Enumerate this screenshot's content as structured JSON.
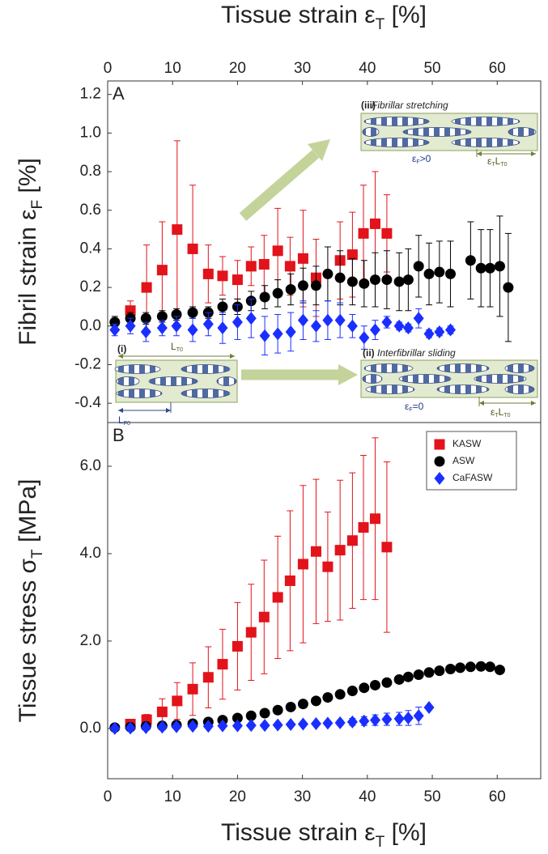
{
  "chart_data": [
    {
      "type": "scatter",
      "panel_label": "A",
      "xlabel": [
        {
          "t": "Tissue strain ε"
        },
        {
          "t": "T",
          "sub": true
        },
        {
          "t": " [%]"
        }
      ],
      "ylabel": [
        {
          "t": "Fibril strain ε"
        },
        {
          "t": "F",
          "sub": true
        },
        {
          "t": " [%]"
        }
      ],
      "xlim": [
        0,
        66.7
      ],
      "xticks": [
        0,
        10,
        20,
        30,
        40,
        50,
        60
      ],
      "ylim": [
        -0.5,
        1.27
      ],
      "yticks": [
        -0.4,
        -0.2,
        {
          "value": 0,
          "label": "0.0"
        },
        0.2,
        0.4,
        0.6,
        0.8,
        {
          "value": 1,
          "label": "1.0"
        },
        1.2
      ],
      "series": [
        {
          "name": "KASW",
          "color": "#e2131b",
          "marker": "square",
          "x": [
            3.5,
            6.0,
            8.4,
            10.7,
            13.1,
            15.5,
            17.7,
            20.0,
            22.1,
            24.1,
            26.2,
            28.1,
            30.1,
            32.1,
            35.8,
            37.7,
            39.4,
            41.2,
            43.0
          ],
          "values": [
            0.08,
            0.2,
            0.29,
            0.5,
            0.4,
            0.27,
            0.26,
            0.24,
            0.31,
            0.32,
            0.39,
            0.31,
            0.35,
            0.25,
            0.34,
            0.37,
            0.48,
            0.53,
            0.48
          ],
          "errors": [
            0.05,
            0.22,
            0.25,
            0.46,
            0.33,
            0.15,
            0.1,
            0.1,
            0.1,
            0.15,
            0.22,
            0.15,
            0.25,
            0.2,
            0.2,
            0.22,
            0.25,
            0.27,
            0.2
          ]
        },
        {
          "name": "ASW",
          "color": "#000000",
          "marker": "circle",
          "x": [
            1.1,
            3.5,
            5.9,
            8.4,
            10.6,
            13.1,
            15.5,
            17.7,
            20.0,
            22.1,
            24.2,
            26.2,
            28.2,
            30.1,
            32.1,
            33.9,
            35.8,
            37.7,
            39.5,
            41.2,
            43.0,
            44.9,
            46.3,
            47.9,
            49.5,
            51.1,
            52.8,
            55.9,
            57.5,
            58.9,
            60.4,
            61.7
          ],
          "values": [
            0.02,
            0.04,
            0.04,
            0.05,
            0.06,
            0.07,
            0.07,
            0.1,
            0.1,
            0.13,
            0.15,
            0.17,
            0.19,
            0.21,
            0.21,
            0.27,
            0.25,
            0.23,
            0.22,
            0.24,
            0.24,
            0.23,
            0.24,
            0.31,
            0.27,
            0.28,
            0.27,
            0.34,
            0.3,
            0.3,
            0.31,
            0.2
          ],
          "errors": [
            0.03,
            0.03,
            0.03,
            0.03,
            0.03,
            0.03,
            0.03,
            0.04,
            0.04,
            0.05,
            0.06,
            0.07,
            0.08,
            0.09,
            0.1,
            0.14,
            0.14,
            0.12,
            0.12,
            0.14,
            0.15,
            0.15,
            0.16,
            0.16,
            0.16,
            0.16,
            0.17,
            0.2,
            0.2,
            0.2,
            0.26,
            0.28
          ]
        },
        {
          "name": "CaFASW",
          "color": "#1a2fff",
          "marker": "diamond",
          "x": [
            1.1,
            3.5,
            5.9,
            8.4,
            10.6,
            13.1,
            15.5,
            17.7,
            20.0,
            22.1,
            24.2,
            26.2,
            28.2,
            30.1,
            32.1,
            33.9,
            35.8,
            37.7,
            39.5,
            41.2,
            43.0,
            44.9,
            46.3,
            47.9,
            49.5,
            51.1,
            52.8
          ],
          "values": [
            -0.02,
            0,
            -0.03,
            -0.01,
            0,
            -0.02,
            0.01,
            -0.01,
            0.02,
            0.04,
            -0.05,
            -0.04,
            -0.03,
            0.03,
            0,
            0.03,
            0.03,
            0,
            -0.06,
            -0.02,
            0.02,
            0,
            -0.01,
            0.04,
            -0.04,
            -0.03,
            -0.02
          ],
          "errors": [
            0.03,
            0.04,
            0.05,
            0.04,
            0.05,
            0.06,
            0.06,
            0.08,
            0.09,
            0.1,
            0.1,
            0.1,
            0.1,
            0.1,
            0.08,
            0.1,
            0.09,
            0.06,
            0.06,
            0.05,
            0.03,
            0.02,
            0.02,
            0.05,
            0.02,
            0.02,
            0.02
          ]
        }
      ],
      "annotations": [
        {
          "parts": [
            {
              "t": "(iii)"
            }
          ]
        },
        {
          "parts": [
            {
              "t": "Fibrillar stretching"
            }
          ]
        },
        {
          "parts": [
            {
              "t": "ε"
            },
            {
              "t": "F",
              "sub": true
            },
            {
              "t": ">0"
            }
          ]
        },
        {
          "parts": [
            {
              "t": "ε"
            },
            {
              "t": "T",
              "sub": true
            },
            {
              "t": "L"
            },
            {
              "t": "T0",
              "sub": true
            }
          ]
        },
        {
          "parts": [
            {
              "t": "(i)"
            }
          ]
        },
        {
          "parts": [
            {
              "t": "L"
            },
            {
              "t": "T0",
              "sub": true
            }
          ]
        },
        {
          "parts": [
            {
              "t": "L"
            },
            {
              "t": "F0",
              "sub": true
            }
          ]
        },
        {
          "parts": [
            {
              "t": "(ii)"
            }
          ]
        },
        {
          "parts": [
            {
              "t": "Interfibrillar sliding"
            }
          ]
        },
        {
          "parts": [
            {
              "t": "ε"
            },
            {
              "t": "F",
              "sub": true
            },
            {
              "t": "=0"
            }
          ]
        },
        {
          "parts": [
            {
              "t": "ε"
            },
            {
              "t": "T",
              "sub": true
            },
            {
              "t": "L"
            },
            {
              "t": "T0",
              "sub": true
            }
          ]
        }
      ]
    },
    {
      "type": "scatter",
      "panel_label": "B",
      "legend": "upper right",
      "xlabel": [
        {
          "t": "Tissue strain ε"
        },
        {
          "t": "T",
          "sub": true
        },
        {
          "t": " [%]"
        }
      ],
      "ylabel": [
        {
          "t": "Tissue stress σ"
        },
        {
          "t": "T",
          "sub": true
        },
        {
          "t": " [MPa]"
        }
      ],
      "xlim": [
        0,
        66.7
      ],
      "xticks": [
        0,
        10,
        20,
        30,
        40,
        50,
        60
      ],
      "ylim": [
        -1.15,
        7.0
      ],
      "yticks": [
        {
          "value": 0,
          "label": "0.0"
        },
        {
          "value": 2,
          "label": "2.0"
        },
        {
          "value": 4,
          "label": "4.0"
        },
        {
          "value": 6,
          "label": "6.0"
        }
      ],
      "series": [
        {
          "name": "KASW",
          "color": "#e2131b",
          "marker": "square",
          "x": [
            3.5,
            6.0,
            8.4,
            10.7,
            13.1,
            15.5,
            17.7,
            20.0,
            22.1,
            24.1,
            26.2,
            28.1,
            30.1,
            32.1,
            33.9,
            35.8,
            37.7,
            39.4,
            41.2,
            43.0
          ],
          "values": [
            0.1,
            0.2,
            0.38,
            0.63,
            0.9,
            1.17,
            1.47,
            1.88,
            2.2,
            2.55,
            3.0,
            3.38,
            3.76,
            4.05,
            3.7,
            4.08,
            4.3,
            4.6,
            4.8,
            4.15
          ],
          "errors": [
            0.05,
            0.12,
            0.3,
            0.42,
            0.6,
            0.7,
            0.8,
            1.0,
            1.1,
            1.3,
            1.4,
            1.6,
            1.8,
            1.65,
            1.25,
            1.6,
            1.55,
            1.65,
            1.85,
            1.95
          ]
        },
        {
          "name": "ASW",
          "color": "#000000",
          "marker": "circle",
          "x": [
            1.1,
            3.5,
            5.9,
            8.4,
            10.6,
            13.1,
            15.5,
            17.7,
            20.0,
            22.1,
            24.2,
            26.2,
            28.2,
            30.1,
            32.1,
            33.9,
            35.8,
            37.7,
            39.5,
            41.2,
            43.0,
            44.9,
            46.3,
            47.9,
            49.5,
            51.1,
            52.8,
            54.3,
            55.9,
            57.5,
            58.9,
            60.4
          ],
          "values": [
            0.02,
            0.03,
            0.05,
            0.06,
            0.08,
            0.11,
            0.15,
            0.19,
            0.24,
            0.29,
            0.35,
            0.42,
            0.49,
            0.56,
            0.63,
            0.71,
            0.78,
            0.86,
            0.93,
            0.99,
            1.05,
            1.12,
            1.18,
            1.23,
            1.28,
            1.32,
            1.36,
            1.39,
            1.41,
            1.42,
            1.41,
            1.34
          ],
          "errors": [
            0.01,
            0.01,
            0.01,
            0.01,
            0.02,
            0.02,
            0.02,
            0.02,
            0.03,
            0.03,
            0.03,
            0.04,
            0.04,
            0.04,
            0.05,
            0.05,
            0.05,
            0.06,
            0.06,
            0.06,
            0.06,
            0.07,
            0.07,
            0.07,
            0.07,
            0.08,
            0.08,
            0.08,
            0.08,
            0.08,
            0.08,
            0.08
          ]
        },
        {
          "name": "CaFASW",
          "color": "#1a2fff",
          "marker": "diamond",
          "x": [
            1.1,
            3.5,
            5.9,
            8.4,
            10.6,
            13.1,
            15.5,
            17.7,
            20.0,
            22.1,
            24.2,
            26.2,
            28.2,
            30.1,
            32.1,
            33.9,
            35.8,
            37.7,
            39.5,
            41.2,
            43.0,
            44.9,
            46.3,
            47.9,
            49.5
          ],
          "values": [
            0,
            0.01,
            0.02,
            0.03,
            0.04,
            0.05,
            0.05,
            0.06,
            0.06,
            0.07,
            0.07,
            0.08,
            0.09,
            0.1,
            0.11,
            0.12,
            0.13,
            0.15,
            0.17,
            0.19,
            0.21,
            0.22,
            0.24,
            0.29,
            0.48
          ],
          "errors": [
            0.01,
            0.01,
            0.01,
            0.01,
            0.02,
            0.02,
            0.02,
            0.02,
            0.02,
            0.02,
            0.03,
            0.03,
            0.03,
            0.04,
            0.04,
            0.05,
            0.06,
            0.08,
            0.1,
            0.12,
            0.14,
            0.15,
            0.17,
            0.2,
            0.03
          ]
        }
      ]
    }
  ]
}
